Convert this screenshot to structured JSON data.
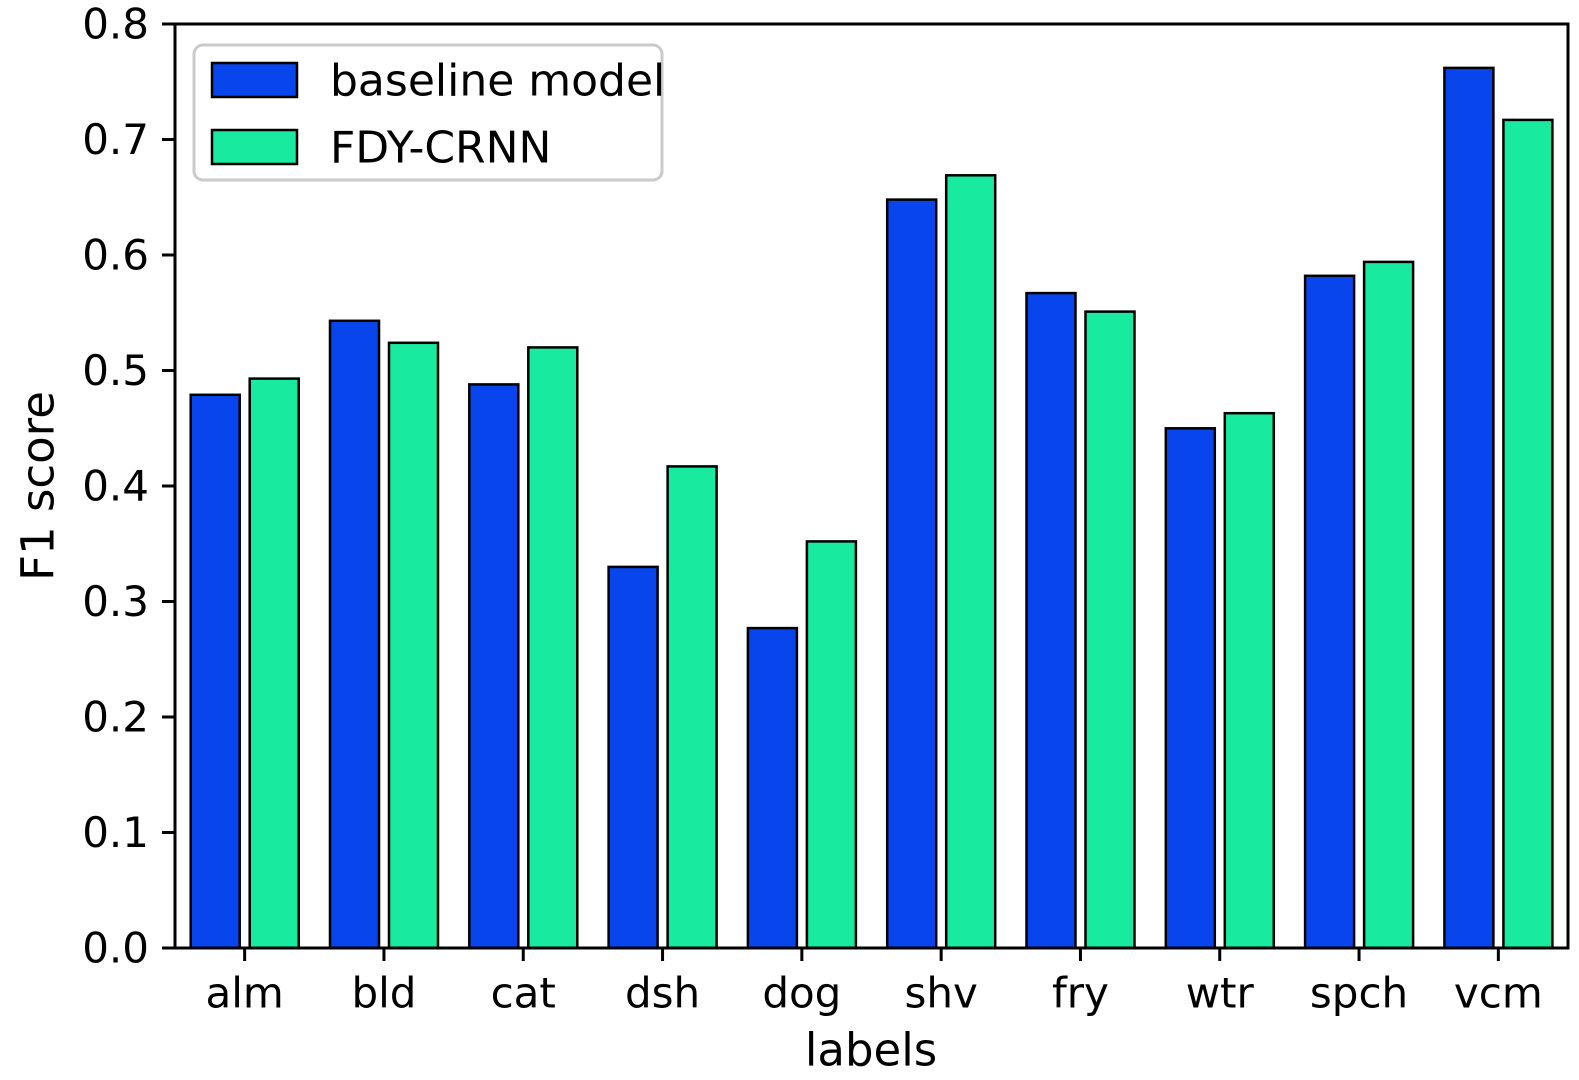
{
  "chart_data": {
    "type": "bar",
    "title": "",
    "xlabel": "labels",
    "ylabel": "F1 score",
    "categories": [
      "alm",
      "bld",
      "cat",
      "dsh",
      "dog",
      "shv",
      "fry",
      "wtr",
      "spch",
      "vcm"
    ],
    "series": [
      {
        "name": "baseline model",
        "color": "#0845ec",
        "values": [
          0.479,
          0.543,
          0.488,
          0.33,
          0.277,
          0.648,
          0.567,
          0.45,
          0.582,
          0.762
        ]
      },
      {
        "name": "FDY-CRNN",
        "color": "#18eba0",
        "values": [
          0.493,
          0.524,
          0.52,
          0.417,
          0.352,
          0.669,
          0.551,
          0.463,
          0.594,
          0.717
        ]
      }
    ],
    "ylim": [
      0.0,
      0.8
    ],
    "yticks": [
      "0.0",
      "0.1",
      "0.2",
      "0.3",
      "0.4",
      "0.5",
      "0.6",
      "0.7",
      "0.8"
    ],
    "bar_edge_color": "#000000",
    "axis_color": "#000000",
    "legend_border_color": "#cbcbcb",
    "legend_position": "upper left",
    "grid": false
  }
}
